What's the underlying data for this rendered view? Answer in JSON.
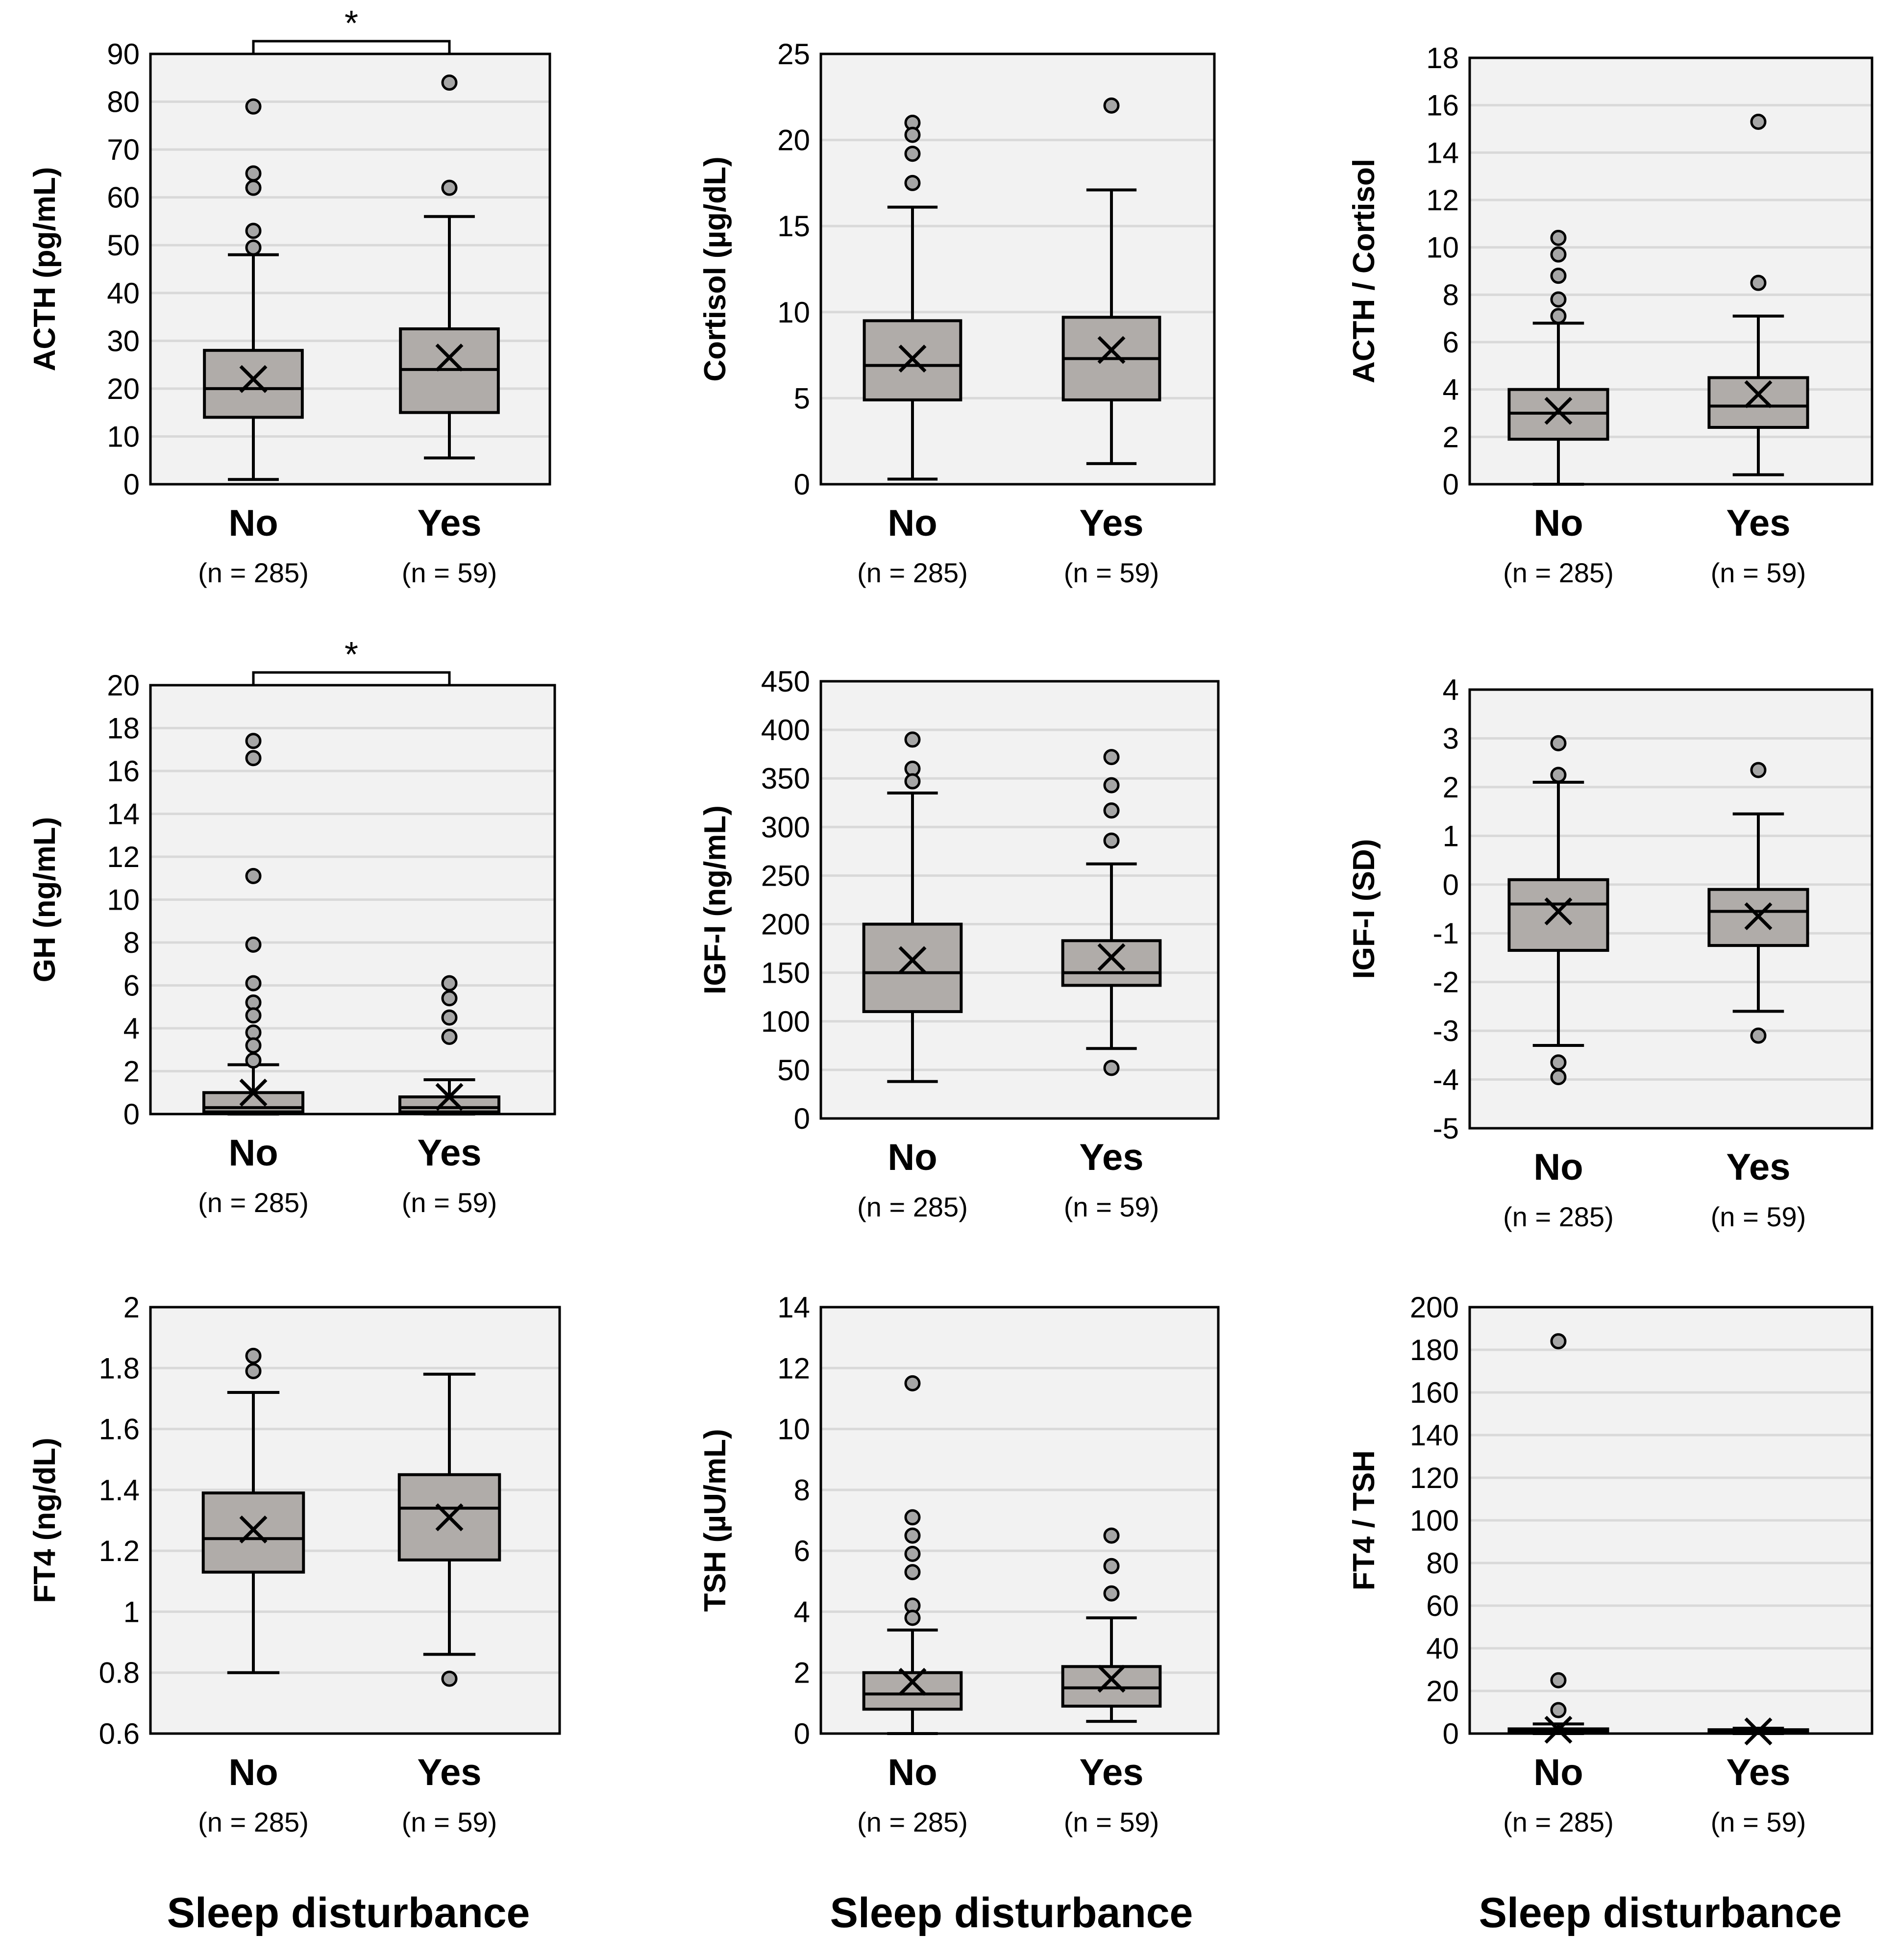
{
  "figure": {
    "categories": [
      "No",
      "Yes"
    ],
    "n_labels": [
      "(n = 285)",
      "(n = 59)"
    ],
    "x_title": "Sleep disturbance",
    "colors": {
      "plot_bg": "#f2f2f2",
      "box_fill": "#b0aca9",
      "grid": "#d9d9d9",
      "outlier_fill": "#a6a6a6",
      "ink": "#000000"
    }
  },
  "chart_data": [
    {
      "type": "boxplot",
      "title": "",
      "ylabel": "ACTH (pg/mL)",
      "ylim": [
        0,
        90
      ],
      "yticks": [
        0,
        10,
        20,
        30,
        40,
        50,
        60,
        70,
        80,
        90
      ],
      "ytick_labels": [
        "0",
        "10",
        "20",
        "30",
        "40",
        "50",
        "60",
        "70",
        "80",
        "90"
      ],
      "significance": "*",
      "x_labels": [
        "No",
        "Yes"
      ],
      "n_labels": [
        "(n = 285)",
        "(n = 59)"
      ],
      "x_title": "",
      "series": [
        {
          "name": "No",
          "whisker_low": 1,
          "q1": 14,
          "median": 20,
          "q3": 28,
          "whisker_high": 48,
          "mean": 22,
          "outliers": [
            79,
            65,
            62,
            53,
            49.5
          ]
        },
        {
          "name": "Yes",
          "whisker_low": 5.5,
          "q1": 15,
          "median": 24,
          "q3": 32.5,
          "whisker_high": 56,
          "mean": 26.5,
          "outliers": [
            84,
            62
          ]
        }
      ]
    },
    {
      "type": "boxplot",
      "title": "",
      "ylabel": "Cortisol (µg/dL)",
      "ylim": [
        0,
        25
      ],
      "yticks": [
        0,
        5,
        10,
        15,
        20,
        25
      ],
      "ytick_labels": [
        "0",
        "5",
        "10",
        "15",
        "20",
        "25"
      ],
      "significance": "",
      "x_labels": [
        "No",
        "Yes"
      ],
      "n_labels": [
        "(n = 285)",
        "(n = 59)"
      ],
      "x_title": "",
      "series": [
        {
          "name": "No",
          "whisker_low": 0.3,
          "q1": 4.9,
          "median": 6.9,
          "q3": 9.5,
          "whisker_high": 16.1,
          "mean": 7.3,
          "outliers": [
            21,
            20.3,
            19.2,
            17.5
          ]
        },
        {
          "name": "Yes",
          "whisker_low": 1.2,
          "q1": 4.9,
          "median": 7.3,
          "q3": 9.7,
          "whisker_high": 17.1,
          "mean": 7.8,
          "outliers": [
            22
          ]
        }
      ]
    },
    {
      "type": "boxplot",
      "title": "",
      "ylabel": "ACTH / Cortisol",
      "ylim": [
        0,
        18
      ],
      "yticks": [
        0,
        2,
        4,
        6,
        8,
        10,
        12,
        14,
        16,
        18
      ],
      "ytick_labels": [
        "0",
        "2",
        "4",
        "6",
        "8",
        "10",
        "12",
        "14",
        "16",
        "18"
      ],
      "significance": "",
      "x_labels": [
        "No",
        "Yes"
      ],
      "n_labels": [
        "(n = 285)",
        "(n = 59)"
      ],
      "x_title": "",
      "series": [
        {
          "name": "No",
          "whisker_low": 0,
          "q1": 1.9,
          "median": 3,
          "q3": 4,
          "whisker_high": 6.8,
          "mean": 3.1,
          "outliers": [
            10.4,
            9.7,
            8.8,
            7.8,
            7.1
          ]
        },
        {
          "name": "Yes",
          "whisker_low": 0.4,
          "q1": 2.4,
          "median": 3.3,
          "q3": 4.5,
          "whisker_high": 7.1,
          "mean": 3.8,
          "outliers": [
            15.3,
            8.5
          ]
        }
      ]
    },
    {
      "type": "boxplot",
      "title": "",
      "ylabel": "GH (ng/mL)",
      "ylim": [
        0,
        20
      ],
      "yticks": [
        0,
        2,
        4,
        6,
        8,
        10,
        12,
        14,
        16,
        18,
        20
      ],
      "ytick_labels": [
        "0",
        "2",
        "4",
        "6",
        "8",
        "10",
        "12",
        "14",
        "16",
        "18",
        "20"
      ],
      "significance": "*",
      "x_labels": [
        "No",
        "Yes"
      ],
      "n_labels": [
        "(n = 285)",
        "(n = 59)"
      ],
      "x_title": "",
      "series": [
        {
          "name": "No",
          "whisker_low": 0,
          "q1": 0.1,
          "median": 0.3,
          "q3": 1,
          "whisker_high": 2.3,
          "mean": 1,
          "outliers": [
            17.4,
            16.6,
            11.1,
            7.9,
            6.1,
            5.2,
            4.6,
            3.8,
            3.2,
            2.5
          ]
        },
        {
          "name": "Yes",
          "whisker_low": 0,
          "q1": 0.1,
          "median": 0.3,
          "q3": 0.8,
          "whisker_high": 1.6,
          "mean": 0.8,
          "outliers": [
            6.1,
            5.4,
            4.5,
            3.6
          ]
        }
      ]
    },
    {
      "type": "boxplot",
      "title": "",
      "ylabel": "IGF-I (ng/mL)",
      "ylim": [
        0,
        450
      ],
      "yticks": [
        0,
        50,
        100,
        150,
        200,
        250,
        300,
        350,
        400,
        450
      ],
      "ytick_labels": [
        "0",
        "50",
        "100",
        "150",
        "200",
        "250",
        "300",
        "350",
        "400",
        "450"
      ],
      "significance": "",
      "x_labels": [
        "No",
        "Yes"
      ],
      "n_labels": [
        "(n = 285)",
        "(n = 59)"
      ],
      "x_title": "",
      "series": [
        {
          "name": "No",
          "whisker_low": 38,
          "q1": 110,
          "median": 150,
          "q3": 200,
          "whisker_high": 335,
          "mean": 163,
          "outliers": [
            390,
            360,
            347
          ]
        },
        {
          "name": "Yes",
          "whisker_low": 72,
          "q1": 137,
          "median": 150,
          "q3": 183,
          "whisker_high": 262,
          "mean": 166,
          "outliers": [
            372,
            343,
            317,
            286,
            52
          ]
        }
      ]
    },
    {
      "type": "boxplot",
      "title": "",
      "ylabel": "IGF-I (SD)",
      "ylim": [
        -5,
        4
      ],
      "yticks": [
        -5,
        -4,
        -3,
        -2,
        -1,
        0,
        1,
        2,
        3,
        4
      ],
      "ytick_labels": [
        "-5",
        "-4",
        "-3",
        "-2",
        "-1",
        "0",
        "1",
        "2",
        "3",
        "4"
      ],
      "significance": "",
      "x_labels": [
        "No",
        "Yes"
      ],
      "n_labels": [
        "(n = 285)",
        "(n = 59)"
      ],
      "x_title": "",
      "series": [
        {
          "name": "No",
          "whisker_low": -3.3,
          "q1": -1.35,
          "median": -0.4,
          "q3": 0.1,
          "whisker_high": 2.1,
          "mean": -0.55,
          "outliers": [
            2.9,
            2.25,
            -3.65,
            -3.95
          ]
        },
        {
          "name": "Yes",
          "whisker_low": -2.6,
          "q1": -1.25,
          "median": -0.55,
          "q3": -0.1,
          "whisker_high": 1.45,
          "mean": -0.65,
          "outliers": [
            2.35,
            -3.1
          ]
        }
      ]
    },
    {
      "type": "boxplot",
      "title": "",
      "ylabel": "FT4 (ng/dL)",
      "ylim": [
        0.6,
        2
      ],
      "yticks": [
        0.6,
        0.8,
        1,
        1.2,
        1.4,
        1.6,
        1.8,
        2
      ],
      "ytick_labels": [
        "0.6",
        "0.8",
        "1",
        "1.2",
        "1.4",
        "1.6",
        "1.8",
        "2"
      ],
      "significance": "",
      "x_labels": [
        "No",
        "Yes"
      ],
      "n_labels": [
        "(n = 285)",
        "(n = 59)"
      ],
      "x_title": "Sleep disturbance",
      "series": [
        {
          "name": "No",
          "whisker_low": 0.8,
          "q1": 1.13,
          "median": 1.24,
          "q3": 1.39,
          "whisker_high": 1.72,
          "mean": 1.27,
          "outliers": [
            1.84,
            1.79
          ]
        },
        {
          "name": "Yes",
          "whisker_low": 0.86,
          "q1": 1.17,
          "median": 1.34,
          "q3": 1.45,
          "whisker_high": 1.78,
          "mean": 1.31,
          "outliers": [
            0.78
          ]
        }
      ]
    },
    {
      "type": "boxplot",
      "title": "",
      "ylabel": "TSH (µU/mL)",
      "ylim": [
        0,
        14
      ],
      "yticks": [
        0,
        2,
        4,
        6,
        8,
        10,
        12,
        14
      ],
      "ytick_labels": [
        "0",
        "2",
        "4",
        "6",
        "8",
        "10",
        "12",
        "14"
      ],
      "significance": "",
      "x_labels": [
        "No",
        "Yes"
      ],
      "n_labels": [
        "(n = 285)",
        "(n = 59)"
      ],
      "x_title": "Sleep disturbance",
      "series": [
        {
          "name": "No",
          "whisker_low": 0,
          "q1": 0.8,
          "median": 1.3,
          "q3": 2,
          "whisker_high": 3.4,
          "mean": 1.7,
          "outliers": [
            11.5,
            7.1,
            6.5,
            5.9,
            5.3,
            4.2,
            3.8
          ]
        },
        {
          "name": "Yes",
          "whisker_low": 0.4,
          "q1": 0.9,
          "median": 1.5,
          "q3": 2.2,
          "whisker_high": 3.8,
          "mean": 1.8,
          "outliers": [
            6.5,
            5.5,
            4.6
          ]
        }
      ]
    },
    {
      "type": "boxplot",
      "title": "",
      "ylabel": "FT4 / TSH",
      "ylim": [
        0,
        200
      ],
      "yticks": [
        0,
        20,
        40,
        60,
        80,
        100,
        120,
        140,
        160,
        180,
        200
      ],
      "ytick_labels": [
        "0",
        "20",
        "40",
        "60",
        "80",
        "100",
        "120",
        "140",
        "160",
        "180",
        "200"
      ],
      "significance": "",
      "x_labels": [
        "No",
        "Yes"
      ],
      "n_labels": [
        "(n = 285)",
        "(n = 59)"
      ],
      "x_title": "Sleep disturbance",
      "series": [
        {
          "name": "No",
          "whisker_low": 0,
          "q1": 0.3,
          "median": 1,
          "q3": 2.2,
          "whisker_high": 4.5,
          "mean": 1.8,
          "outliers": [
            184,
            25,
            11
          ]
        },
        {
          "name": "Yes",
          "whisker_low": 0,
          "q1": 0.3,
          "median": 0.9,
          "q3": 1.8,
          "whisker_high": 2.5,
          "mean": 1,
          "outliers": []
        }
      ]
    }
  ]
}
